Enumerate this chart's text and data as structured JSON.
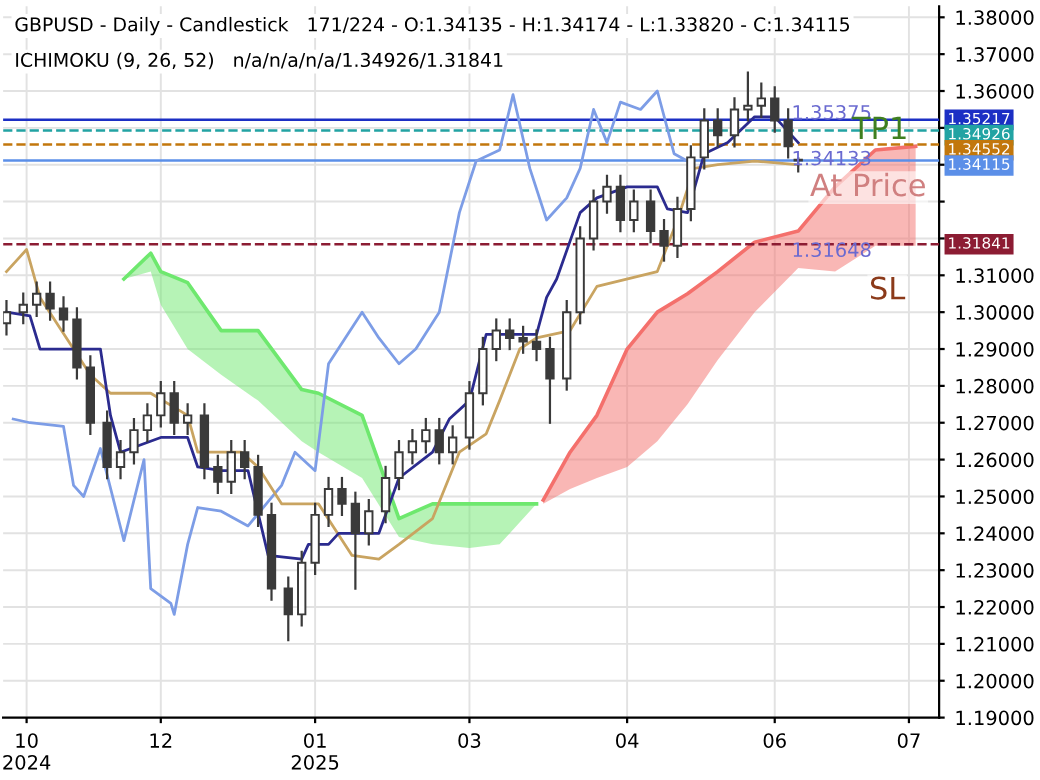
{
  "chart_data": {
    "type": "candlestick",
    "title": "GBPUSD - Daily - Candlestick   171/224 - O:1.34135 - H:1.34174 - L:1.33820 - C:1.34115",
    "subtitle": "ICHIMOKU (9, 26, 52)   n/a/n/a/n/a/1.34926/1.31841",
    "color": "#3a3a3a",
    "x": [
      "2024-10-17",
      "2024-10-22",
      "2024-10-26",
      "2024-10-30",
      "2024-11-03",
      "2024-11-07",
      "2024-11-11",
      "2024-11-16",
      "2024-11-20",
      "2024-11-24",
      "2024-11-28",
      "2024-12-02",
      "2024-12-06",
      "2024-12-10",
      "2024-12-15",
      "2024-12-19",
      "2024-12-23",
      "2024-12-27",
      "2024-12-31",
      "2025-01-04",
      "2025-01-09",
      "2025-01-13",
      "2025-01-17",
      "2025-01-21",
      "2025-01-25",
      "2025-01-29",
      "2025-02-02",
      "2025-02-07",
      "2025-02-11",
      "2025-02-15",
      "2025-02-19",
      "2025-02-23",
      "2025-02-27",
      "2025-03-04",
      "2025-03-08",
      "2025-03-12",
      "2025-03-16",
      "2025-03-20",
      "2025-03-24",
      "2025-03-28",
      "2025-04-02",
      "2025-04-06",
      "2025-04-10",
      "2025-04-14",
      "2025-04-18",
      "2025-04-22",
      "2025-04-27",
      "2025-05-01",
      "2025-05-05",
      "2025-05-09",
      "2025-05-13",
      "2025-05-17",
      "2025-05-22",
      "2025-05-26",
      "2025-05-30",
      "2025-06-03",
      "2025-06-07",
      "2025-06-10"
    ],
    "ohlc": [
      [
        1.297,
        1.303,
        1.294,
        1.3
      ],
      [
        1.3,
        1.305,
        1.297,
        1.302
      ],
      [
        1.302,
        1.308,
        1.299,
        1.305
      ],
      [
        1.305,
        1.308,
        1.298,
        1.301
      ],
      [
        1.301,
        1.304,
        1.295,
        1.298
      ],
      [
        1.298,
        1.301,
        1.282,
        1.285
      ],
      [
        1.285,
        1.288,
        1.267,
        1.27
      ],
      [
        1.27,
        1.273,
        1.255,
        1.258
      ],
      [
        1.258,
        1.265,
        1.255,
        1.262
      ],
      [
        1.262,
        1.271,
        1.259,
        1.268
      ],
      [
        1.268,
        1.275,
        1.265,
        1.272
      ],
      [
        1.272,
        1.281,
        1.269,
        1.278
      ],
      [
        1.278,
        1.281,
        1.267,
        1.27
      ],
      [
        1.27,
        1.275,
        1.267,
        1.272
      ],
      [
        1.272,
        1.275,
        1.255,
        1.258
      ],
      [
        1.258,
        1.261,
        1.251,
        1.254
      ],
      [
        1.254,
        1.265,
        1.251,
        1.262
      ],
      [
        1.262,
        1.265,
        1.255,
        1.258
      ],
      [
        1.258,
        1.261,
        1.242,
        1.245
      ],
      [
        1.245,
        1.248,
        1.222,
        1.225
      ],
      [
        1.225,
        1.228,
        1.211,
        1.218
      ],
      [
        1.218,
        1.235,
        1.215,
        1.232
      ],
      [
        1.232,
        1.248,
        1.229,
        1.245
      ],
      [
        1.245,
        1.255,
        1.242,
        1.252
      ],
      [
        1.252,
        1.255,
        1.245,
        1.248
      ],
      [
        1.248,
        1.251,
        1.225,
        1.24
      ],
      [
        1.24,
        1.249,
        1.237,
        1.246
      ],
      [
        1.246,
        1.258,
        1.243,
        1.255
      ],
      [
        1.255,
        1.265,
        1.252,
        1.262
      ],
      [
        1.262,
        1.268,
        1.259,
        1.265
      ],
      [
        1.265,
        1.271,
        1.262,
        1.268
      ],
      [
        1.268,
        1.271,
        1.259,
        1.262
      ],
      [
        1.262,
        1.269,
        1.259,
        1.266
      ],
      [
        1.266,
        1.281,
        1.263,
        1.278
      ],
      [
        1.278,
        1.293,
        1.275,
        1.29
      ],
      [
        1.29,
        1.298,
        1.287,
        1.295
      ],
      [
        1.295,
        1.298,
        1.29,
        1.293
      ],
      [
        1.293,
        1.296,
        1.289,
        1.292
      ],
      [
        1.292,
        1.295,
        1.287,
        1.29
      ],
      [
        1.29,
        1.293,
        1.27,
        1.282
      ],
      [
        1.282,
        1.303,
        1.279,
        1.3
      ],
      [
        1.3,
        1.323,
        1.297,
        1.32
      ],
      [
        1.32,
        1.333,
        1.317,
        1.33
      ],
      [
        1.33,
        1.337,
        1.327,
        1.334
      ],
      [
        1.334,
        1.337,
        1.322,
        1.325
      ],
      [
        1.325,
        1.333,
        1.322,
        1.33
      ],
      [
        1.33,
        1.333,
        1.319,
        1.322
      ],
      [
        1.322,
        1.325,
        1.314,
        1.318
      ],
      [
        1.318,
        1.331,
        1.315,
        1.328
      ],
      [
        1.328,
        1.345,
        1.325,
        1.342
      ],
      [
        1.342,
        1.355,
        1.339,
        1.352
      ],
      [
        1.352,
        1.355,
        1.345,
        1.348
      ],
      [
        1.348,
        1.358,
        1.345,
        1.355
      ],
      [
        1.355,
        1.365,
        1.352,
        1.356
      ],
      [
        1.356,
        1.362,
        1.353,
        1.358
      ],
      [
        1.358,
        1.361,
        1.349,
        1.352
      ],
      [
        1.352,
        1.355,
        1.342,
        1.345
      ],
      [
        1.34135,
        1.34174,
        1.3382,
        1.34115
      ]
    ],
    "series": [
      {
        "type": "line",
        "color": "#6ee86e",
        "x": [
          "2024-11-21",
          "2024-11-29",
          "2024-12-02",
          "2024-12-10",
          "2024-12-20",
          "2024-12-31",
          "2025-01-13",
          "2025-01-18",
          "2025-01-31",
          "2025-02-11",
          "2025-02-21",
          "2025-03-04",
          "2025-03-13",
          "2025-03-19",
          "2025-03-24"
        ],
        "values": [
          1.309,
          1.316,
          1.311,
          1.308,
          1.295,
          1.295,
          1.279,
          1.278,
          1.272,
          1.244,
          1.248,
          1.248,
          1.248,
          1.248,
          1.248
        ],
        "upper": [
          1.309,
          1.316,
          1.311,
          1.308,
          1.295,
          1.295,
          1.279,
          1.278,
          1.272,
          1.244,
          1.248,
          1.248,
          1.248,
          1.248,
          1.248
        ],
        "lower": [
          1.309,
          1.311,
          1.302,
          1.29,
          1.283,
          1.276,
          1.265,
          1.262,
          1.255,
          1.239,
          1.237,
          1.236,
          1.237,
          1.243,
          1.248
        ]
      },
      {
        "type": "line",
        "color": "#f4706c",
        "x": [
          "2025-03-26",
          "2025-04-03",
          "2025-04-11",
          "2025-04-20",
          "2025-04-29",
          "2025-05-08",
          "2025-05-17",
          "2025-05-28",
          "2025-06-10",
          "2025-06-21",
          "2025-07-03",
          "2025-07-15"
        ],
        "values": [
          1.249,
          1.262,
          1.272,
          1.29,
          1.3,
          1.305,
          1.311,
          1.319,
          1.322,
          1.334,
          1.344,
          1.345
        ],
        "upper": [
          1.249,
          1.262,
          1.272,
          1.29,
          1.3,
          1.305,
          1.311,
          1.319,
          1.322,
          1.334,
          1.344,
          1.345
        ],
        "lower": [
          1.248,
          1.252,
          1.255,
          1.258,
          1.265,
          1.275,
          1.287,
          1.3,
          1.312,
          1.311,
          1.318,
          1.318
        ]
      },
      {
        "type": "line",
        "color": "#7d9de6",
        "x": [
          "2024-10-19",
          "2024-10-24",
          "2024-11-03",
          "2024-11-06",
          "2024-11-09",
          "2024-11-14",
          "2024-11-21",
          "2024-11-27",
          "2024-11-29",
          "2024-12-05",
          "2024-12-06",
          "2024-12-10",
          "2024-12-13",
          "2024-12-20",
          "2024-12-28",
          "2025-01-07",
          "2025-01-11",
          "2025-01-17",
          "2025-01-21",
          "2025-01-31",
          "2025-02-05",
          "2025-02-11",
          "2025-02-16",
          "2025-02-23",
          "2025-03-01",
          "2025-03-06",
          "2025-03-13",
          "2025-03-17",
          "2025-03-22",
          "2025-03-27",
          "2025-04-02",
          "2025-04-06",
          "2025-04-10",
          "2025-04-14",
          "2025-04-18",
          "2025-04-24",
          "2025-04-29",
          "2025-05-04",
          "2025-05-08"
        ],
        "values": [
          1.271,
          1.27,
          1.269,
          1.253,
          1.25,
          1.263,
          1.238,
          1.26,
          1.225,
          1.221,
          1.218,
          1.237,
          1.247,
          1.246,
          1.242,
          1.253,
          1.262,
          1.257,
          1.286,
          1.3,
          1.293,
          1.286,
          1.29,
          1.3,
          1.327,
          1.341,
          1.344,
          1.359,
          1.339,
          1.325,
          1.331,
          1.339,
          1.355,
          1.346,
          1.357,
          1.355,
          1.36,
          1.343,
          1.341
        ]
      },
      {
        "type": "line",
        "color": "#c9a461",
        "x": [
          "2024-10-17",
          "2024-10-23",
          "2024-10-27",
          "2024-11-11",
          "2024-11-17",
          "2024-11-29",
          "2024-12-10",
          "2024-12-13",
          "2024-12-26",
          "2024-12-31",
          "2025-01-07",
          "2025-01-18",
          "2025-01-28",
          "2025-02-05",
          "2025-02-11",
          "2025-02-21",
          "2025-03-01",
          "2025-03-09",
          "2025-03-13",
          "2025-03-19",
          "2025-03-24",
          "2025-04-03",
          "2025-04-11",
          "2025-04-29",
          "2025-05-05",
          "2025-05-10",
          "2025-05-17",
          "2025-05-28",
          "2025-06-10"
        ],
        "values": [
          1.311,
          1.317,
          1.304,
          1.283,
          1.278,
          1.278,
          1.272,
          1.262,
          1.262,
          1.258,
          1.248,
          1.248,
          1.234,
          1.233,
          1.237,
          1.244,
          1.262,
          1.267,
          1.276,
          1.29,
          1.293,
          1.295,
          1.307,
          1.311,
          1.325,
          1.339,
          1.34,
          1.341,
          1.34
        ]
      },
      {
        "type": "line",
        "color": "#2b2b8f",
        "x": [
          "2024-10-17",
          "2024-10-24",
          "2024-10-27",
          "2024-11-14",
          "2024-11-17",
          "2024-11-20",
          "2024-12-02",
          "2024-12-10",
          "2024-12-13",
          "2024-12-20",
          "2024-12-28",
          "2025-01-03",
          "2025-01-13",
          "2025-01-15",
          "2025-01-21",
          "2025-01-24",
          "2025-02-05",
          "2025-02-11",
          "2025-02-21",
          "2025-02-26",
          "2025-03-04",
          "2025-03-09",
          "2025-03-24",
          "2025-03-27",
          "2025-03-30",
          "2025-04-06",
          "2025-04-11",
          "2025-04-20",
          "2025-04-29",
          "2025-05-02",
          "2025-05-08",
          "2025-05-13",
          "2025-05-20",
          "2025-05-28",
          "2025-06-03",
          "2025-06-10"
        ],
        "values": [
          1.3,
          1.299,
          1.29,
          1.29,
          1.272,
          1.262,
          1.266,
          1.266,
          1.258,
          1.257,
          1.257,
          1.234,
          1.233,
          1.237,
          1.237,
          1.24,
          1.24,
          1.255,
          1.262,
          1.271,
          1.276,
          1.294,
          1.294,
          1.304,
          1.309,
          1.327,
          1.331,
          1.334,
          1.334,
          1.328,
          1.327,
          1.343,
          1.346,
          1.353,
          1.353,
          1.346
        ]
      }
    ],
    "ref_lines": [
      {
        "axis": "y",
        "value": 1.35217,
        "label": "1.35217",
        "color": "#1c2fc4",
        "line_style": "solid"
      },
      {
        "axis": "y",
        "value": 1.34926,
        "label": "1.34926",
        "color": "#22a3a3",
        "line_style": "dashed"
      },
      {
        "axis": "y",
        "value": 1.34552,
        "label": "1.34552",
        "color": "#c2770c",
        "line_style": "dashed"
      },
      {
        "axis": "y",
        "value": 1.34115,
        "label": "1.34115",
        "color": "#5b8fe8",
        "line_style": "solid"
      },
      {
        "axis": "y",
        "value": 1.31841,
        "label": "1.31841",
        "color": "#8c1c33",
        "line_style": "dashed"
      }
    ],
    "annotations": [
      {
        "text": "1.35375",
        "x": "2025-06-08",
        "y": 1.35375
      },
      {
        "text": "1.34133",
        "x": "2025-06-08",
        "y": 1.34133
      },
      {
        "text": "1.31648",
        "x": "2025-06-08",
        "y": 1.31648
      },
      {
        "text": "TP1",
        "x": "2025-06-26",
        "y": 1.34926
      },
      "At Price",
      "SL"
    ],
    "xlim": [
      "2024-10-16",
      "2025-07-22"
    ],
    "xticks": [
      {
        "value": "2024-10-23",
        "label": "10\n2024"
      },
      {
        "value": "2024-12-02",
        "label": "12"
      },
      {
        "value": "2025-01-17",
        "label": "01\n2025"
      },
      {
        "value": "2025-03-04",
        "label": "03"
      },
      {
        "value": "2025-04-20",
        "label": "04"
      },
      {
        "value": "2025-06-03",
        "label": "06"
      },
      {
        "value": "2025-07-13",
        "label": "07"
      }
    ],
    "ylim": [
      1.19,
      1.383
    ],
    "yticks": [
      {
        "value": 1.19,
        "label": "1.19000"
      },
      {
        "value": 1.2,
        "label": "1.20000"
      },
      {
        "value": 1.21,
        "label": "1.21000"
      },
      {
        "value": 1.22,
        "label": "1.22000"
      },
      {
        "value": 1.23,
        "label": "1.23000"
      },
      {
        "value": 1.24,
        "label": "1.24000"
      },
      {
        "value": 1.25,
        "label": "1.25000"
      },
      {
        "value": 1.26,
        "label": "1.26000"
      },
      {
        "value": 1.27,
        "label": "1.27000"
      },
      {
        "value": 1.28,
        "label": "1.28000"
      },
      {
        "value": 1.29,
        "label": "1.29000"
      },
      {
        "value": 1.3,
        "label": "1.30000"
      },
      {
        "value": 1.31,
        "label": "1.31000"
      },
      {
        "value": 1.32,
        "label": null
      },
      {
        "value": 1.33,
        "label": null
      },
      {
        "value": 1.34,
        "label": null
      },
      {
        "value": 1.35,
        "label": null
      },
      {
        "value": 1.36,
        "label": "1.36000"
      },
      {
        "value": 1.37,
        "label": "1.37000"
      },
      {
        "value": 1.38,
        "label": "1.38000"
      }
    ],
    "grid": true
  }
}
